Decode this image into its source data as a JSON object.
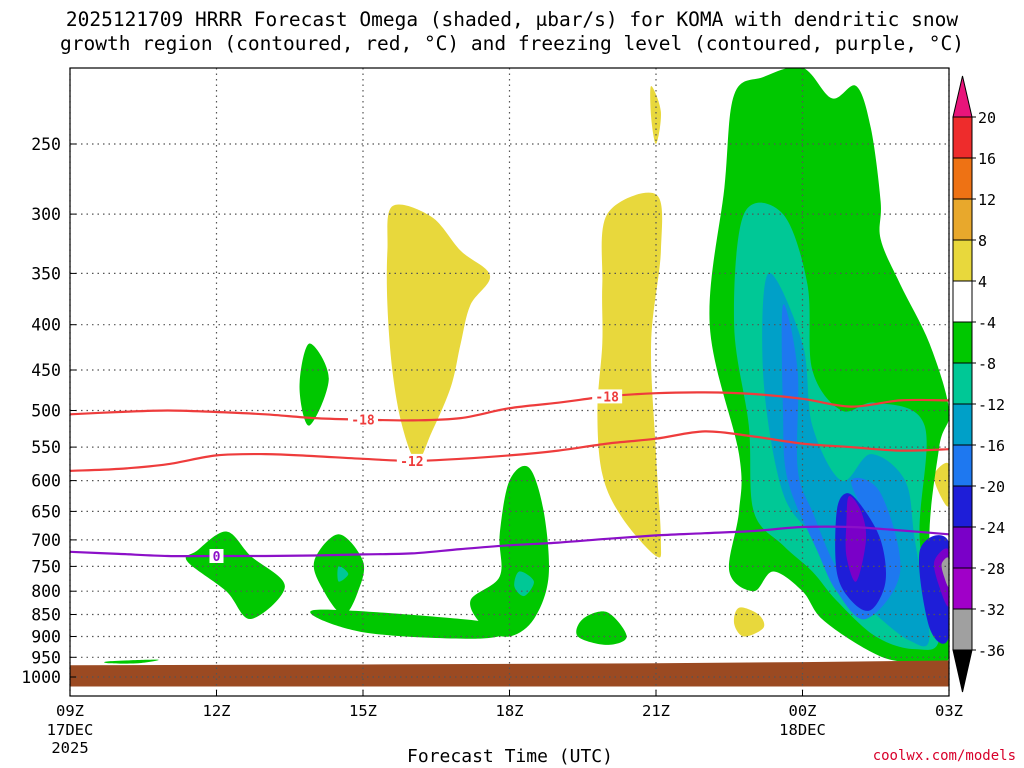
{
  "title_line1": "2025121709 HRRR Forecast Omega (shaded, μbar/s) for KOMA with dendritic snow",
  "title_line2": "growth region (contoured, red, °C) and freezing level (contoured, purple, °C)",
  "credit": "coolwx.com/models",
  "chart_data": {
    "type": "contour",
    "xlabel": "Forecast Time (UTC)",
    "x_ticks": [
      {
        "hour": 0,
        "label": "09Z",
        "sub1": "17DEC",
        "sub2": "2025"
      },
      {
        "hour": 3,
        "label": "12Z",
        "sub1": "",
        "sub2": ""
      },
      {
        "hour": 6,
        "label": "15Z",
        "sub1": "",
        "sub2": ""
      },
      {
        "hour": 9,
        "label": "18Z",
        "sub1": "",
        "sub2": ""
      },
      {
        "hour": 12,
        "label": "21Z",
        "sub1": "",
        "sub2": ""
      },
      {
        "hour": 15,
        "label": "00Z",
        "sub1": "18DEC",
        "sub2": ""
      },
      {
        "hour": 18,
        "label": "03Z",
        "sub1": "",
        "sub2": ""
      }
    ],
    "xlim": [
      0,
      18
    ],
    "y_ticks": [
      250,
      300,
      350,
      400,
      450,
      500,
      550,
      600,
      650,
      700,
      750,
      800,
      850,
      900,
      950,
      1000
    ],
    "ylim": [
      200,
      1025
    ],
    "y_scale": "log-pressure (inverted)",
    "grid": true,
    "colorbar": {
      "labels": [
        "20",
        "16",
        "12",
        "8",
        "4",
        "-4",
        "-8",
        "-12",
        "-16",
        "-20",
        "-24",
        "-28",
        "-32",
        "-36"
      ],
      "colors": [
        "#e8147a",
        "#ee2c2c",
        "#ee7214",
        "#e8a82c",
        "#e8d83c",
        "#ffffff",
        "#00c800",
        "#00c896",
        "#00a0c8",
        "#1e78f0",
        "#1e1ed8",
        "#7a00c8",
        "#a000c8",
        "#a0a0a0",
        "#000000"
      ]
    },
    "contours": [
      {
        "name": "-18",
        "color": "#ee3c3c",
        "label_hours": [
          6.0,
          11.0
        ],
        "points": [
          [
            0,
            505
          ],
          [
            1,
            502
          ],
          [
            2,
            500
          ],
          [
            3,
            502
          ],
          [
            4,
            505
          ],
          [
            5,
            510
          ],
          [
            6,
            512
          ],
          [
            7,
            513
          ],
          [
            8,
            510
          ],
          [
            9,
            497
          ],
          [
            10,
            490
          ],
          [
            11,
            482
          ],
          [
            12,
            478
          ],
          [
            13,
            477
          ],
          [
            14,
            479
          ],
          [
            15,
            485
          ],
          [
            16,
            495
          ],
          [
            17,
            487
          ],
          [
            18,
            487
          ]
        ]
      },
      {
        "name": "-12",
        "color": "#ee3c3c",
        "label_hours": [
          7.0
        ],
        "points": [
          [
            0,
            585
          ],
          [
            1,
            582
          ],
          [
            2,
            575
          ],
          [
            3,
            562
          ],
          [
            4,
            560
          ],
          [
            5,
            563
          ],
          [
            6,
            567
          ],
          [
            7,
            570
          ],
          [
            8,
            567
          ],
          [
            9,
            562
          ],
          [
            10,
            555
          ],
          [
            11,
            545
          ],
          [
            12,
            538
          ],
          [
            13,
            528
          ],
          [
            14,
            535
          ],
          [
            15,
            545
          ],
          [
            16,
            550
          ],
          [
            17,
            555
          ],
          [
            18,
            553
          ]
        ]
      },
      {
        "name": "0",
        "color": "#8c10c8",
        "label_hours": [
          3.0
        ],
        "points": [
          [
            0,
            722
          ],
          [
            1,
            726
          ],
          [
            2,
            730
          ],
          [
            3,
            730
          ],
          [
            4,
            730
          ],
          [
            5,
            729
          ],
          [
            6,
            727
          ],
          [
            7,
            725
          ],
          [
            8,
            717
          ],
          [
            9,
            710
          ],
          [
            10,
            705
          ],
          [
            11,
            698
          ],
          [
            12,
            692
          ],
          [
            13,
            688
          ],
          [
            14,
            684
          ],
          [
            15,
            677
          ],
          [
            16,
            677
          ],
          [
            17,
            683
          ],
          [
            18,
            690
          ]
        ]
      }
    ],
    "regions": [
      {
        "level": "4",
        "color": "#e8d83c",
        "points": [
          [
            6.6,
            294
          ],
          [
            7.4,
            302
          ],
          [
            8.0,
            330
          ],
          [
            8.6,
            352
          ],
          [
            8.2,
            380
          ],
          [
            8.0,
            420
          ],
          [
            7.8,
            470
          ],
          [
            7.4,
            530
          ],
          [
            7.1,
            570
          ],
          [
            6.8,
            520
          ],
          [
            6.6,
            450
          ],
          [
            6.5,
            380
          ],
          [
            6.5,
            330
          ]
        ]
      },
      {
        "level": "4",
        "color": "#e8d83c",
        "points": [
          [
            11.0,
            300
          ],
          [
            12.0,
            285
          ],
          [
            12.1,
            330
          ],
          [
            11.9,
            420
          ],
          [
            12.0,
            560
          ],
          [
            12.1,
            700
          ],
          [
            12.0,
            730
          ],
          [
            11.3,
            660
          ],
          [
            10.9,
            590
          ],
          [
            10.8,
            500
          ],
          [
            10.9,
            420
          ],
          [
            10.9,
            360
          ]
        ]
      },
      {
        "level": "4",
        "color": "#e8d83c",
        "points": [
          [
            11.9,
            215
          ],
          [
            12.1,
            230
          ],
          [
            12.0,
            250
          ],
          [
            11.9,
            233
          ]
        ]
      },
      {
        "level": "4",
        "color": "#e8d83c",
        "points": [
          [
            13.7,
            835
          ],
          [
            14.1,
            850
          ],
          [
            14.2,
            880
          ],
          [
            13.8,
            900
          ],
          [
            13.6,
            870
          ]
        ]
      },
      {
        "level": "4",
        "color": "#e8d83c",
        "points": [
          [
            17.7,
            590
          ],
          [
            18.0,
            575
          ],
          [
            18.0,
            640
          ],
          [
            17.8,
            620
          ]
        ]
      },
      {
        "level": "-4",
        "color": "#00c800",
        "points": [
          [
            13.7,
            560
          ],
          [
            13.1,
            400
          ],
          [
            13.4,
            280
          ],
          [
            13.6,
            220
          ],
          [
            14.2,
            210
          ],
          [
            15.0,
            205
          ],
          [
            15.6,
            222
          ],
          [
            16.1,
            215
          ],
          [
            16.4,
            240
          ],
          [
            16.6,
            290
          ],
          [
            16.6,
            320
          ],
          [
            17.0,
            360
          ],
          [
            17.6,
            420
          ],
          [
            18.0,
            500
          ],
          [
            17.8,
            550
          ],
          [
            17.6,
            720
          ],
          [
            18.0,
            950
          ],
          [
            17.0,
            960
          ],
          [
            16.3,
            930
          ],
          [
            15.4,
            860
          ],
          [
            15.0,
            800
          ],
          [
            14.4,
            760
          ],
          [
            14.0,
            800
          ],
          [
            13.5,
            760
          ],
          [
            13.7,
            650
          ]
        ]
      },
      {
        "level": "-4",
        "color": "#00c800",
        "points": [
          [
            2.6,
            720
          ],
          [
            3.2,
            685
          ],
          [
            3.7,
            730
          ],
          [
            4.4,
            790
          ],
          [
            3.7,
            860
          ],
          [
            3.2,
            800
          ],
          [
            2.4,
            740
          ]
        ]
      },
      {
        "level": "-4",
        "color": "#00c800",
        "points": [
          [
            5.0,
            740
          ],
          [
            5.5,
            690
          ],
          [
            6.0,
            740
          ],
          [
            5.9,
            800
          ],
          [
            5.6,
            850
          ],
          [
            5.2,
            800
          ]
        ]
      },
      {
        "level": "-4",
        "color": "#00c800",
        "points": [
          [
            8.8,
            690
          ],
          [
            9.0,
            600
          ],
          [
            9.4,
            580
          ],
          [
            9.7,
            650
          ],
          [
            9.8,
            770
          ],
          [
            9.5,
            860
          ],
          [
            9.0,
            900
          ],
          [
            8.5,
            880
          ],
          [
            8.2,
            820
          ],
          [
            8.8,
            770
          ]
        ]
      },
      {
        "level": "-4",
        "color": "#00c800",
        "points": [
          [
            10.5,
            860
          ],
          [
            11.0,
            845
          ],
          [
            11.4,
            900
          ],
          [
            11.0,
            920
          ],
          [
            10.4,
            900
          ]
        ]
      },
      {
        "level": "-4",
        "color": "#00c800",
        "points": [
          [
            5.0,
            840
          ],
          [
            8.0,
            860
          ],
          [
            9.0,
            880
          ],
          [
            8.4,
            905
          ],
          [
            6.0,
            890
          ]
        ]
      },
      {
        "level": "-4",
        "color": "#00c800",
        "points": [
          [
            4.9,
            420
          ],
          [
            5.3,
            460
          ],
          [
            4.9,
            520
          ],
          [
            4.7,
            470
          ]
        ]
      },
      {
        "level": "-4",
        "color": "#00c800",
        "points": [
          [
            0.8,
            960
          ],
          [
            1.8,
            956
          ],
          [
            1.4,
            965
          ],
          [
            0.8,
            965
          ]
        ]
      },
      {
        "level": "-8",
        "color": "#00c896",
        "points": [
          [
            13.9,
            520
          ],
          [
            13.6,
            400
          ],
          [
            13.8,
            300
          ],
          [
            14.6,
            300
          ],
          [
            15.1,
            360
          ],
          [
            15.2,
            450
          ],
          [
            15.8,
            500
          ],
          [
            16.5,
            490
          ],
          [
            17.5,
            520
          ],
          [
            17.4,
            700
          ],
          [
            17.8,
            900
          ],
          [
            17.3,
            930
          ],
          [
            16.5,
            900
          ],
          [
            15.7,
            820
          ],
          [
            15.2,
            760
          ],
          [
            14.6,
            710
          ],
          [
            14.0,
            650
          ]
        ]
      },
      {
        "level": "-8",
        "color": "#00c896",
        "points": [
          [
            9.2,
            760
          ],
          [
            9.5,
            780
          ],
          [
            9.3,
            810
          ],
          [
            9.1,
            790
          ]
        ]
      },
      {
        "level": "-8",
        "color": "#00c896",
        "points": [
          [
            5.5,
            750
          ],
          [
            5.7,
            765
          ],
          [
            5.5,
            780
          ]
        ]
      },
      {
        "level": "-12",
        "color": "#00a0c8",
        "points": [
          [
            14.2,
            460
          ],
          [
            14.3,
            350
          ],
          [
            15.0,
            420
          ],
          [
            15.2,
            520
          ],
          [
            15.8,
            600
          ],
          [
            16.4,
            560
          ],
          [
            17.1,
            600
          ],
          [
            17.3,
            700
          ],
          [
            17.6,
            900
          ],
          [
            17.2,
            910
          ],
          [
            16.5,
            850
          ],
          [
            15.7,
            770
          ],
          [
            15.3,
            700
          ],
          [
            14.6,
            620
          ]
        ]
      },
      {
        "level": "-16",
        "color": "#1e78f0",
        "points": [
          [
            14.6,
            500
          ],
          [
            14.6,
            380
          ],
          [
            14.9,
            450
          ],
          [
            14.9,
            580
          ],
          [
            15.2,
            650
          ],
          [
            15.8,
            760
          ],
          [
            16.3,
            680
          ],
          [
            16.0,
            600
          ],
          [
            16.6,
            620
          ],
          [
            17.0,
            760
          ],
          [
            16.3,
            860
          ],
          [
            15.7,
            800
          ],
          [
            15.3,
            720
          ],
          [
            14.7,
            600
          ]
        ]
      },
      {
        "level": "-20",
        "color": "#1e1ed8",
        "points": [
          [
            15.7,
            650
          ],
          [
            15.9,
            620
          ],
          [
            16.2,
            640
          ],
          [
            16.6,
            700
          ],
          [
            16.7,
            780
          ],
          [
            16.4,
            840
          ],
          [
            16.0,
            820
          ],
          [
            15.7,
            760
          ]
        ]
      },
      {
        "level": "-20",
        "color": "#1e1ed8",
        "points": [
          [
            17.4,
            720
          ],
          [
            18.0,
            705
          ],
          [
            18.0,
            900
          ],
          [
            17.6,
            880
          ]
        ]
      },
      {
        "level": "-24",
        "color": "#7a00c8",
        "points": [
          [
            15.95,
            625
          ],
          [
            16.2,
            650
          ],
          [
            16.3,
            700
          ],
          [
            16.1,
            780
          ],
          [
            15.9,
            730
          ],
          [
            15.9,
            670
          ]
        ]
      },
      {
        "level": "-24",
        "color": "#7a00c8",
        "points": [
          [
            17.7,
            740
          ],
          [
            18.0,
            720
          ],
          [
            18.0,
            830
          ],
          [
            17.8,
            790
          ]
        ]
      },
      {
        "level": "-28",
        "color": "#a0a0a0",
        "points": [
          [
            17.85,
            745
          ],
          [
            18.0,
            735
          ],
          [
            18.0,
            790
          ],
          [
            17.9,
            770
          ]
        ]
      },
      {
        "level": "terrain",
        "color": "#9b4a22",
        "points": [
          [
            0,
            970
          ],
          [
            6,
            968
          ],
          [
            12,
            965
          ],
          [
            15,
            962
          ],
          [
            18,
            958
          ],
          [
            18,
            1025
          ],
          [
            0,
            1025
          ]
        ]
      }
    ]
  }
}
